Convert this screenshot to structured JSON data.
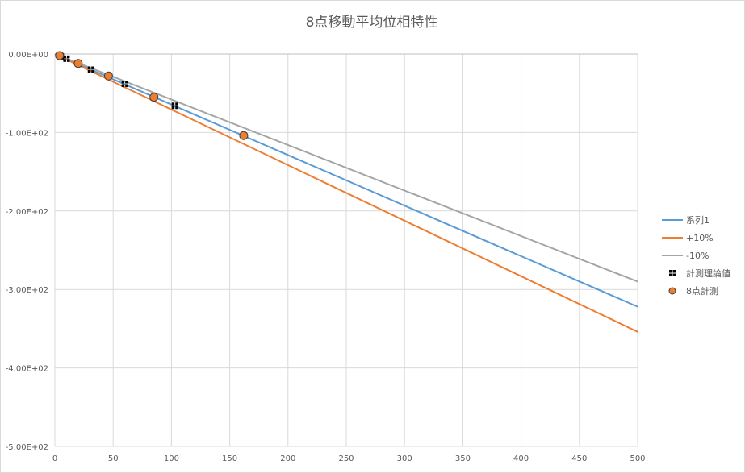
{
  "chart_data": {
    "type": "scatter",
    "title": "8点移動平均位相特性",
    "xlabel": "",
    "ylabel": "",
    "xlim": [
      0,
      500
    ],
    "ylim": [
      -500,
      0
    ],
    "x_ticks": [
      "0",
      "50",
      "100",
      "150",
      "200",
      "250",
      "300",
      "350",
      "400",
      "450",
      "500"
    ],
    "y_ticks": [
      "0.00E+00",
      "-1.00E+02",
      "-2.00E+02",
      "-3.00E+02",
      "-4.00E+02",
      "-5.00E+02"
    ],
    "grid": true,
    "legend_position": "right",
    "series": [
      {
        "name": "系列1",
        "kind": "line",
        "color": "#5b9bd5",
        "x": [
          0,
          500
        ],
        "y": [
          0,
          -322
        ]
      },
      {
        "name": "+10%",
        "kind": "line",
        "color": "#ed7d31",
        "x": [
          0,
          500
        ],
        "y": [
          0,
          -354
        ]
      },
      {
        "name": "-10%",
        "kind": "line",
        "color": "#a5a5a5",
        "x": [
          0,
          500
        ],
        "y": [
          0,
          -290
        ]
      },
      {
        "name": "計測理論値",
        "kind": "marker-square",
        "color": "#000000",
        "x": [
          5,
          10,
          20,
          31,
          60,
          103,
          162
        ],
        "y": [
          -3,
          -6,
          -12,
          -20,
          -38,
          -66,
          -104
        ]
      },
      {
        "name": "8点計測",
        "kind": "marker-circle",
        "color": "#ed7d31",
        "x": [
          4,
          20,
          46,
          85,
          162
        ],
        "y": [
          -2,
          -12,
          -28,
          -55,
          -104
        ]
      }
    ]
  }
}
